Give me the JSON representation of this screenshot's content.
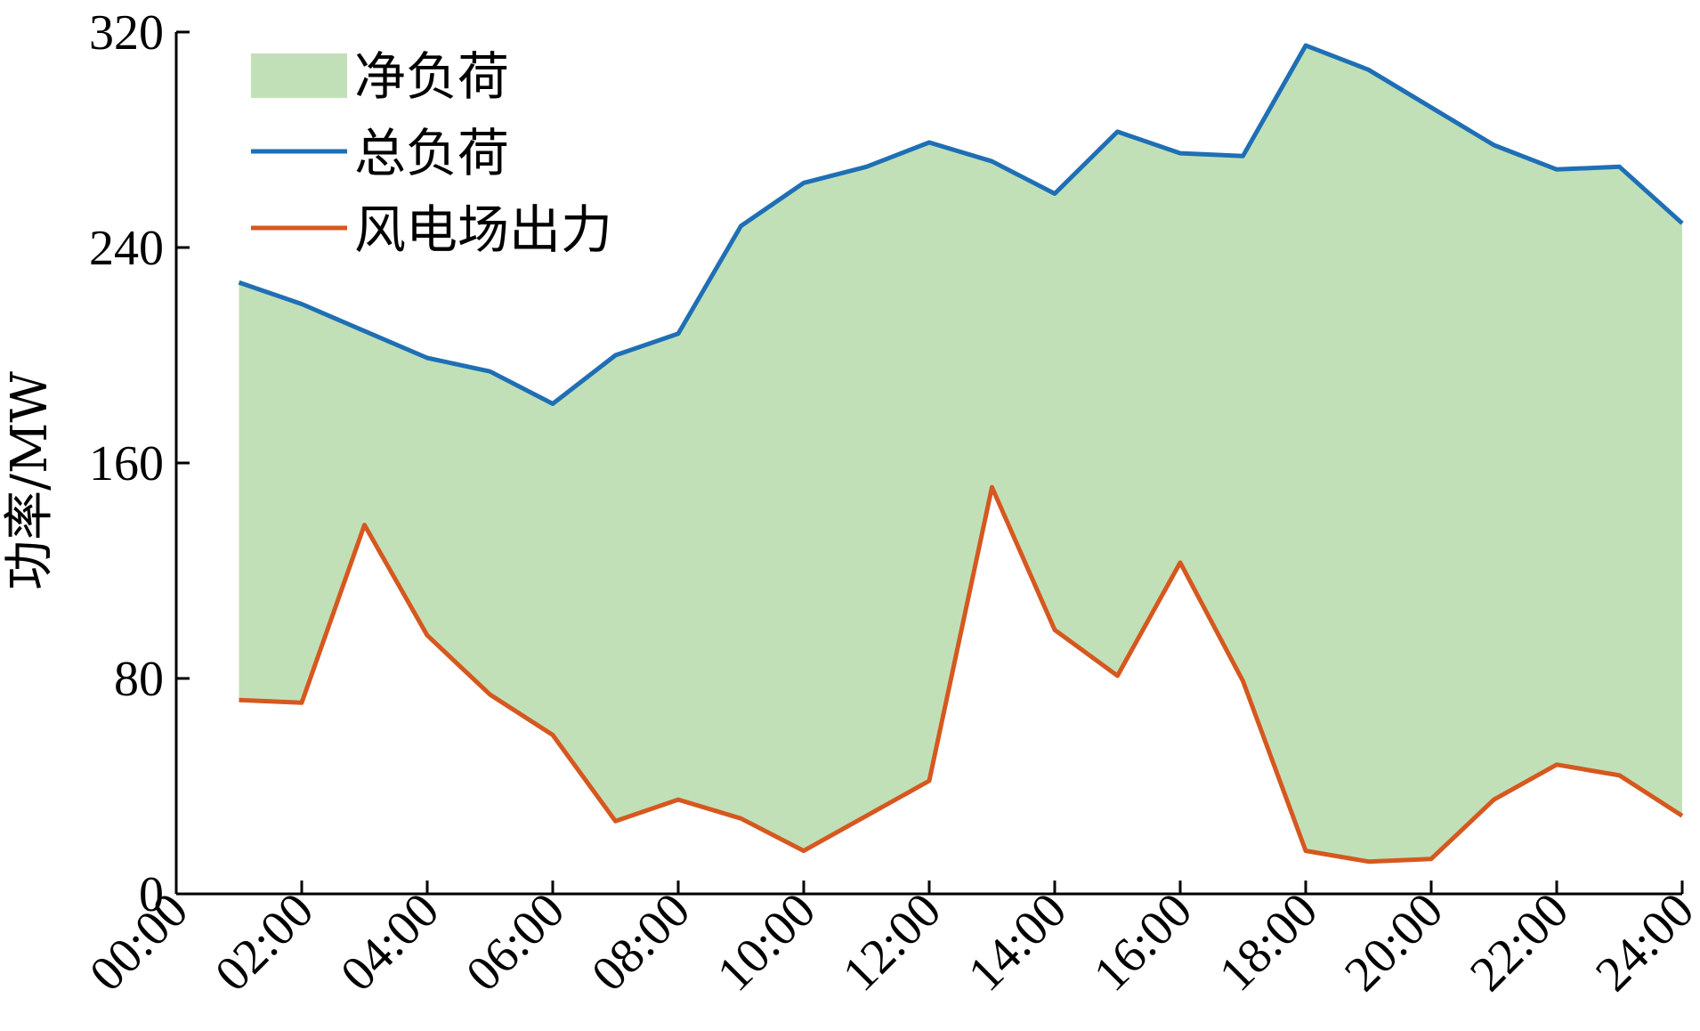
{
  "chart_data": {
    "type": "area",
    "ylabel": "功率/MW",
    "xlabel": "",
    "ylim": [
      0,
      320
    ],
    "yticks": [
      0,
      80,
      160,
      240,
      320
    ],
    "xlim": [
      0,
      24
    ],
    "xticks": [
      0,
      2,
      4,
      6,
      8,
      10,
      12,
      14,
      16,
      18,
      20,
      22,
      24
    ],
    "xtick_labels": [
      "00:00",
      "02:00",
      "04:00",
      "06:00",
      "08:00",
      "10:00",
      "12:00",
      "14:00",
      "16:00",
      "18:00",
      "20:00",
      "22:00",
      "24:00"
    ],
    "x": [
      1,
      2,
      3,
      4,
      5,
      6,
      7,
      8,
      9,
      10,
      11,
      12,
      13,
      14,
      15,
      16,
      17,
      18,
      19,
      20,
      21,
      22,
      23,
      24
    ],
    "series": [
      {
        "name": "总负荷",
        "type": "line",
        "color": "#1f6fb5",
        "values": [
          227,
          219,
          209,
          199,
          194,
          182,
          200,
          208,
          248,
          264,
          270,
          279,
          272,
          260,
          283,
          275,
          274,
          315,
          306,
          292,
          278,
          269,
          270,
          249
        ]
      },
      {
        "name": "风电场出力",
        "type": "line",
        "color": "#d6581f",
        "values": [
          72,
          71,
          137,
          96,
          74,
          59,
          27,
          35,
          28,
          16,
          29,
          42,
          151,
          98,
          81,
          123,
          79,
          16,
          12,
          13,
          35,
          48,
          44,
          29
        ]
      }
    ],
    "fill_between": {
      "name": "净负荷",
      "color": "#c2e0b7",
      "upper": "总负荷",
      "lower": "风电场出力"
    },
    "legend": {
      "position": "top-left"
    },
    "grid": false
  }
}
